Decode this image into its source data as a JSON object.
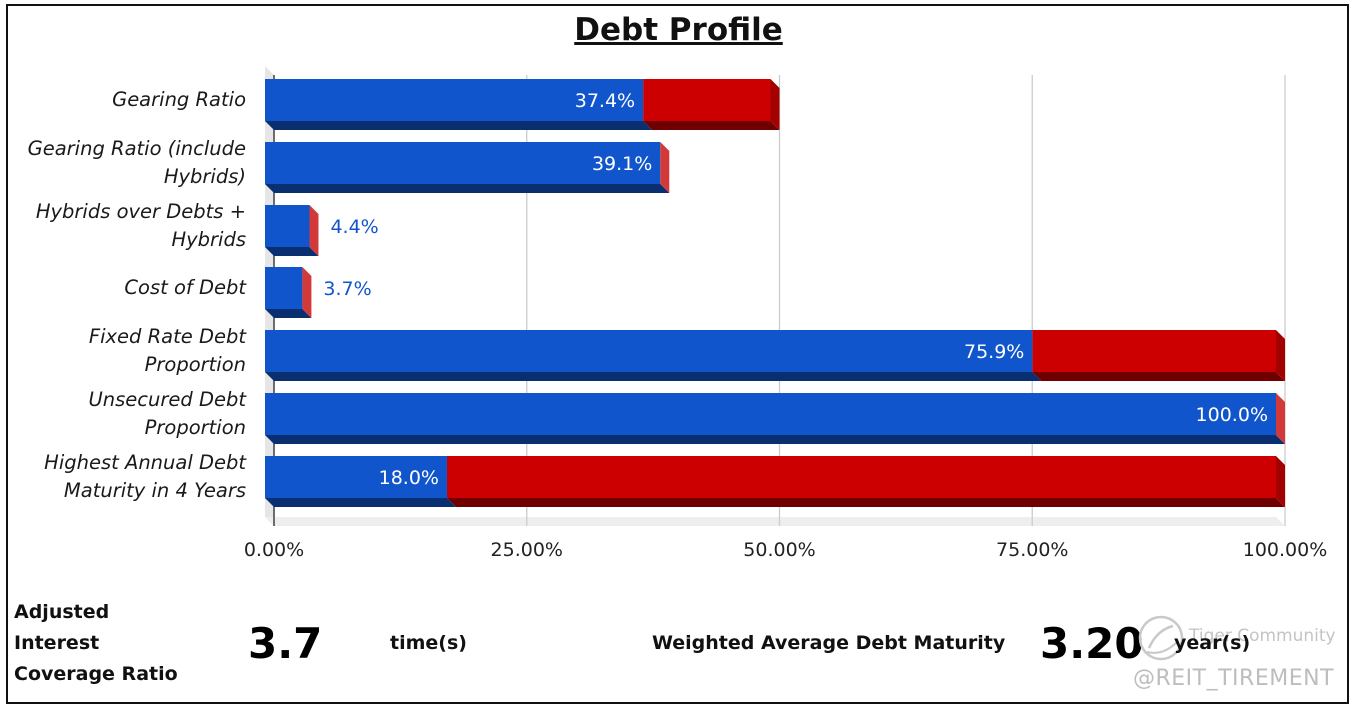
{
  "title": "Debt Profile",
  "chart_data": {
    "type": "bar",
    "orientation": "horizontal",
    "stacked": true,
    "categories": [
      "Gearing Ratio",
      "Gearing Ratio (include\nHybrids)",
      "Hybrids over Debts +\nHybrids",
      "Cost of Debt",
      "Fixed Rate Debt\nProportion",
      "Unsecured Debt\nProportion",
      "Highest Annual Debt\nMaturity in 4 Years"
    ],
    "series": [
      {
        "values": [
          37.4,
          39.1,
          4.4,
          3.7,
          75.9,
          100.0,
          18.0
        ],
        "color": "#1155cc"
      },
      {
        "values": [
          12.6,
          0,
          0,
          0,
          24.1,
          0,
          82.0
        ],
        "color": "#cc0000"
      }
    ],
    "data_labels": [
      "37.4%",
      "39.1%",
      "4.4%",
      "3.7%",
      "75.9%",
      "100.0%",
      "18.0%"
    ],
    "data_label_placement": [
      "inside",
      "inside",
      "outside",
      "outside",
      "inside",
      "inside",
      "inside"
    ],
    "xlim": [
      0,
      100
    ],
    "ticks": [
      "0.00%",
      "25.00%",
      "50.00%",
      "75.00%",
      "100.00%"
    ],
    "grid": "vertical",
    "style": "3d"
  },
  "metrics": {
    "icr_label_line1": "Adjusted",
    "icr_label_line2": "Interest",
    "icr_label_line3": "Coverage Ratio",
    "icr_value": "3.7",
    "icr_unit": "time(s)",
    "wadm_label": "Weighted Average Debt Maturity",
    "wadm_value": "3.20",
    "wadm_unit": "year(s)"
  },
  "watermark": {
    "brand": "Tiger Community",
    "handle": "@REIT_TIREMENT"
  }
}
